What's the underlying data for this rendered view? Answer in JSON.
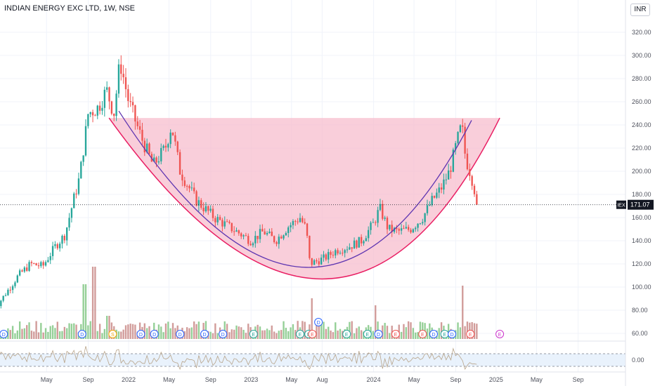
{
  "header": {
    "title": "INDIAN ENERGY EXC LTD, 1W, NSE",
    "currency": "INR"
  },
  "chart_data": {
    "type": "candlestick",
    "title": "INDIAN ENERGY EXC LTD, 1W, NSE",
    "ylim": [
      45,
      330
    ],
    "y_ticks": [
      60,
      80,
      100,
      120,
      140,
      160,
      180,
      200,
      220,
      240,
      260,
      280,
      300,
      320
    ],
    "x_ticks": [
      {
        "label": "May",
        "t": 2021.33
      },
      {
        "label": "Sep",
        "t": 2021.67
      },
      {
        "label": "2022",
        "t": 2022.0
      },
      {
        "label": "May",
        "t": 2022.33
      },
      {
        "label": "Sep",
        "t": 2022.67
      },
      {
        "label": "2023",
        "t": 2023.0
      },
      {
        "label": "May",
        "t": 2023.33
      },
      {
        "label": "Aug",
        "t": 2023.58
      },
      {
        "label": "2024",
        "t": 2024.0
      },
      {
        "label": "May",
        "t": 2024.33
      },
      {
        "label": "Sep",
        "t": 2024.67
      },
      {
        "label": "2025",
        "t": 2025.0
      },
      {
        "label": "May",
        "t": 2025.33
      },
      {
        "label": "Sep",
        "t": 2025.67
      }
    ],
    "price_label": {
      "symbol": "IEX",
      "value": "171.07",
      "price": 171.07
    },
    "rsi_label": "0.00",
    "colors": {
      "up": "#26a69a",
      "down": "#ef5350",
      "vol_up": "#81c784",
      "vol_down": "#c98a87",
      "cup_fill": "#f7b9cb",
      "cup_edge": "#e91e63",
      "arc": "#5e35b1"
    },
    "price_path": [
      {
        "t": 2020.9,
        "p": 80
      },
      {
        "t": 2021.0,
        "p": 95
      },
      {
        "t": 2021.1,
        "p": 110
      },
      {
        "t": 2021.2,
        "p": 120
      },
      {
        "t": 2021.3,
        "p": 118
      },
      {
        "t": 2021.4,
        "p": 135
      },
      {
        "t": 2021.48,
        "p": 145
      },
      {
        "t": 2021.55,
        "p": 175
      },
      {
        "t": 2021.6,
        "p": 195
      },
      {
        "t": 2021.67,
        "p": 250
      },
      {
        "t": 2021.75,
        "p": 255
      },
      {
        "t": 2021.82,
        "p": 270
      },
      {
        "t": 2021.88,
        "p": 250
      },
      {
        "t": 2021.93,
        "p": 295
      },
      {
        "t": 2022.0,
        "p": 260
      },
      {
        "t": 2022.1,
        "p": 230
      },
      {
        "t": 2022.2,
        "p": 205
      },
      {
        "t": 2022.3,
        "p": 220
      },
      {
        "t": 2022.35,
        "p": 240
      },
      {
        "t": 2022.42,
        "p": 200
      },
      {
        "t": 2022.55,
        "p": 175
      },
      {
        "t": 2022.7,
        "p": 160
      },
      {
        "t": 2022.85,
        "p": 150
      },
      {
        "t": 2023.0,
        "p": 140
      },
      {
        "t": 2023.1,
        "p": 148
      },
      {
        "t": 2023.2,
        "p": 140
      },
      {
        "t": 2023.3,
        "p": 152
      },
      {
        "t": 2023.4,
        "p": 160
      },
      {
        "t": 2023.45,
        "p": 150
      },
      {
        "t": 2023.48,
        "p": 120
      },
      {
        "t": 2023.6,
        "p": 125
      },
      {
        "t": 2023.7,
        "p": 132
      },
      {
        "t": 2023.8,
        "p": 135
      },
      {
        "t": 2023.9,
        "p": 140
      },
      {
        "t": 2024.0,
        "p": 155
      },
      {
        "t": 2024.05,
        "p": 168
      },
      {
        "t": 2024.12,
        "p": 150
      },
      {
        "t": 2024.2,
        "p": 148
      },
      {
        "t": 2024.3,
        "p": 150
      },
      {
        "t": 2024.4,
        "p": 160
      },
      {
        "t": 2024.48,
        "p": 175
      },
      {
        "t": 2024.55,
        "p": 185
      },
      {
        "t": 2024.62,
        "p": 200
      },
      {
        "t": 2024.68,
        "p": 225
      },
      {
        "t": 2024.72,
        "p": 240
      },
      {
        "t": 2024.75,
        "p": 212
      },
      {
        "t": 2024.8,
        "p": 195
      },
      {
        "t": 2024.85,
        "p": 172
      }
    ],
    "volume_spikes": [
      {
        "t": 2021.64,
        "v": 100
      },
      {
        "t": 2021.72,
        "v": 125
      },
      {
        "t": 2021.83,
        "v": 55
      },
      {
        "t": 2023.5,
        "v": 80
      },
      {
        "t": 2024.02,
        "v": 70
      },
      {
        "t": 2024.73,
        "v": 98
      }
    ],
    "events": [
      {
        "t": 2020.98,
        "l": "D",
        "c": "#2962ff"
      },
      {
        "t": 2021.62,
        "l": "D",
        "c": "#2962ff"
      },
      {
        "t": 2021.87,
        "l": "S",
        "c": "#f0a500"
      },
      {
        "t": 2022.1,
        "l": "D",
        "c": "#2962ff"
      },
      {
        "t": 2022.21,
        "l": "D",
        "c": "#2962ff"
      },
      {
        "t": 2022.42,
        "l": "D",
        "c": "#2962ff"
      },
      {
        "t": 2022.62,
        "l": "D",
        "c": "#2962ff"
      },
      {
        "t": 2022.77,
        "l": "D",
        "c": "#2962ff"
      },
      {
        "t": 2023.02,
        "l": "E",
        "c": "#26a69a"
      },
      {
        "t": 2023.4,
        "l": "E",
        "c": "#26a69a"
      },
      {
        "t": 2023.47,
        "l": "E",
        "c": "#26a69a"
      },
      {
        "t": 2023.5,
        "l": "E",
        "c": "#ef5350"
      },
      {
        "t": 2023.78,
        "l": "E",
        "c": "#26a69a"
      },
      {
        "t": 2023.95,
        "l": "E",
        "c": "#26a69a"
      },
      {
        "t": 2024.04,
        "l": "D",
        "c": "#2962ff"
      },
      {
        "t": 2024.18,
        "l": "E",
        "c": "#ef5350"
      },
      {
        "t": 2024.4,
        "l": "E",
        "c": "#ef5350"
      },
      {
        "t": 2024.49,
        "l": "D",
        "c": "#2962ff"
      },
      {
        "t": 2024.58,
        "l": "E",
        "c": "#26a69a"
      },
      {
        "t": 2024.64,
        "l": "D",
        "c": "#2962ff"
      },
      {
        "t": 2024.79,
        "l": "E",
        "c": "#ef5350"
      },
      {
        "t": 2025.03,
        "l": "E",
        "c": "#cc33cc"
      }
    ],
    "event_d_floating": {
      "t": 2023.55,
      "l": "D",
      "c": "#2962ff"
    },
    "cup": {
      "left": {
        "t": 2021.84,
        "p": 246
      },
      "right": {
        "t": 2025.03,
        "p": 246
      },
      "bottom": {
        "t": 2023.58,
        "p": 107
      }
    },
    "arc": {
      "left": {
        "t": 2021.92,
        "p": 252
      },
      "right": {
        "t": 2024.8,
        "p": 244
      },
      "bottom": {
        "t": 2023.45,
        "p": 117
      }
    }
  }
}
